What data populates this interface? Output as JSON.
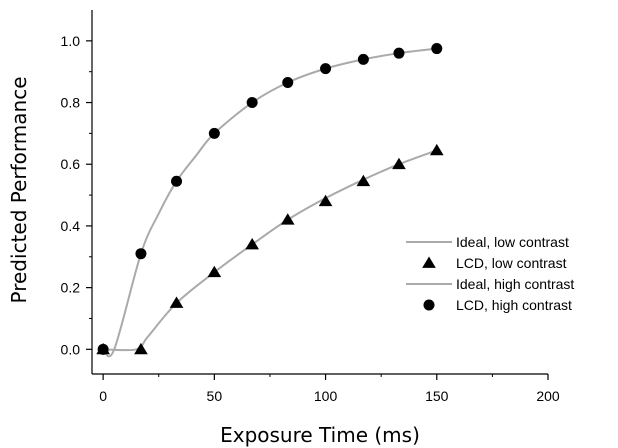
{
  "chart_data": {
    "type": "line",
    "xlabel": "Exposure Time (ms)",
    "ylabel": "Predicted Performance",
    "xlim": [
      -5,
      200
    ],
    "ylim": [
      -0.08,
      1.1
    ],
    "xticks": [
      0,
      50,
      100,
      150,
      200
    ],
    "yticks": [
      0.0,
      0.2,
      0.4,
      0.6,
      0.8,
      1.0
    ],
    "xtick_labels": [
      "0",
      "50",
      "100",
      "150",
      "200"
    ],
    "ytick_labels": [
      "0.0",
      "0.2",
      "0.4",
      "0.6",
      "0.8",
      "1.0"
    ],
    "grid": false,
    "legend_position": "right",
    "series": [
      {
        "name": "Ideal, low contrast",
        "kind": "line",
        "color": "#aaaaaa",
        "x": [
          0,
          15,
          20,
          33,
          50,
          67,
          83,
          100,
          117,
          133,
          150
        ],
        "y": [
          0.0,
          0.0,
          0.04,
          0.15,
          0.25,
          0.34,
          0.42,
          0.49,
          0.55,
          0.6,
          0.645
        ]
      },
      {
        "name": "LCD, low contrast",
        "kind": "markers",
        "marker": "triangle",
        "color": "#000000",
        "x": [
          0,
          17,
          33,
          50,
          67,
          83,
          100,
          117,
          133,
          150
        ],
        "y": [
          0.0,
          0.0,
          0.15,
          0.25,
          0.34,
          0.42,
          0.48,
          0.545,
          0.6,
          0.645
        ]
      },
      {
        "name": "Ideal, high contrast",
        "kind": "line",
        "color": "#aaaaaa",
        "x": [
          0,
          5,
          17,
          25,
          33,
          42,
          50,
          67,
          83,
          100,
          117,
          133,
          150
        ],
        "y": [
          0.0,
          0.0,
          0.31,
          0.44,
          0.545,
          0.63,
          0.7,
          0.8,
          0.865,
          0.91,
          0.94,
          0.96,
          0.975
        ]
      },
      {
        "name": "LCD, high contrast",
        "kind": "markers",
        "marker": "circle",
        "color": "#000000",
        "x": [
          0,
          17,
          33,
          50,
          67,
          83,
          100,
          117,
          133,
          150
        ],
        "y": [
          0.0,
          0.31,
          0.545,
          0.7,
          0.8,
          0.865,
          0.91,
          0.94,
          0.96,
          0.975
        ]
      }
    ]
  }
}
